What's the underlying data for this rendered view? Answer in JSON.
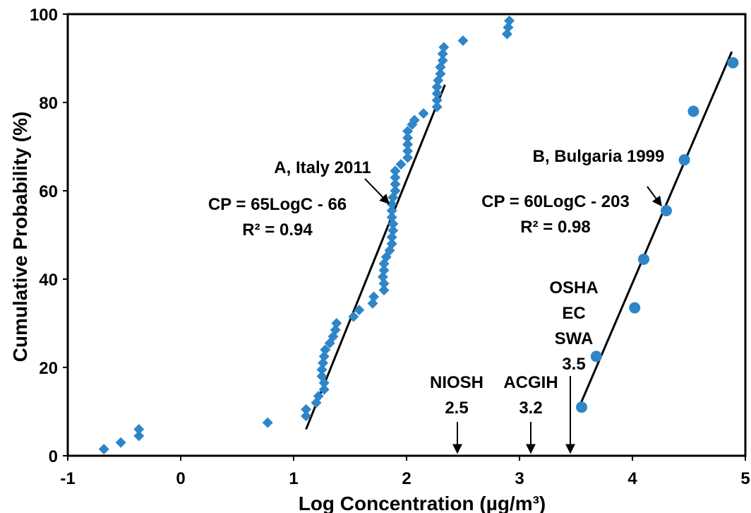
{
  "chart_data": {
    "type": "scatter",
    "title": "",
    "xlabel": "Log  Concentration (µg/m³)",
    "ylabel": "Cumulative Probability (%)",
    "xlim": [
      -1,
      5
    ],
    "ylim": [
      0,
      100
    ],
    "x_ticks": [
      "-1",
      "0",
      "1",
      "2",
      "3",
      "4",
      "5"
    ],
    "y_ticks": [
      "0",
      "20",
      "40",
      "60",
      "80",
      "100"
    ],
    "grid": false,
    "legend": "none",
    "series": [
      {
        "marker": "diamond",
        "color": "#2E86C8",
        "points": [
          [
            -0.68,
            1.5
          ],
          [
            -0.53,
            3.0
          ],
          [
            -0.37,
            4.5
          ],
          [
            -0.37,
            6.0
          ],
          [
            0.77,
            7.5
          ],
          [
            1.11,
            9.0
          ],
          [
            1.11,
            10.5
          ],
          [
            1.2,
            12.0
          ],
          [
            1.22,
            13.5
          ],
          [
            1.27,
            15.0
          ],
          [
            1.27,
            16.5
          ],
          [
            1.25,
            18.0
          ],
          [
            1.25,
            19.5
          ],
          [
            1.26,
            21.0
          ],
          [
            1.27,
            22.5
          ],
          [
            1.28,
            24.0
          ],
          [
            1.32,
            25.5
          ],
          [
            1.35,
            27.0
          ],
          [
            1.37,
            28.5
          ],
          [
            1.38,
            30.0
          ],
          [
            1.53,
            31.5
          ],
          [
            1.58,
            33.0
          ],
          [
            1.7,
            34.5
          ],
          [
            1.71,
            36.0
          ],
          [
            1.8,
            37.5
          ],
          [
            1.8,
            39.0
          ],
          [
            1.79,
            40.5
          ],
          [
            1.8,
            42.0
          ],
          [
            1.8,
            43.5
          ],
          [
            1.82,
            45.0
          ],
          [
            1.85,
            46.5
          ],
          [
            1.87,
            48.0
          ],
          [
            1.87,
            49.5
          ],
          [
            1.88,
            51.0
          ],
          [
            1.88,
            52.5
          ],
          [
            1.87,
            54.0
          ],
          [
            1.87,
            55.5
          ],
          [
            1.87,
            57.0
          ],
          [
            1.88,
            58.5
          ],
          [
            1.9,
            60.0
          ],
          [
            1.9,
            61.5
          ],
          [
            1.9,
            63.0
          ],
          [
            1.9,
            64.5
          ],
          [
            1.95,
            66.0
          ],
          [
            2.01,
            67.5
          ],
          [
            2.01,
            69.0
          ],
          [
            2.01,
            70.5
          ],
          [
            2.01,
            72.0
          ],
          [
            2.01,
            73.5
          ],
          [
            2.05,
            75.0
          ],
          [
            2.07,
            76.0
          ],
          [
            2.15,
            77.5
          ],
          [
            2.27,
            79.0
          ],
          [
            2.27,
            80.5
          ],
          [
            2.27,
            82.0
          ],
          [
            2.27,
            83.5
          ],
          [
            2.28,
            85.0
          ],
          [
            2.3,
            86.5
          ],
          [
            2.3,
            88.0
          ],
          [
            2.32,
            89.5
          ],
          [
            2.32,
            91.0
          ],
          [
            2.33,
            92.5
          ],
          [
            2.5,
            94.0
          ],
          [
            2.89,
            95.5
          ],
          [
            2.9,
            97.0
          ],
          [
            2.91,
            98.5
          ]
        ]
      },
      {
        "marker": "circle",
        "color": "#2E86C8",
        "points": [
          [
            3.55,
            11.0
          ],
          [
            3.68,
            22.5
          ],
          [
            4.02,
            33.5
          ],
          [
            4.1,
            44.5
          ],
          [
            4.3,
            55.5
          ],
          [
            4.46,
            67.0
          ],
          [
            4.54,
            78.0
          ],
          [
            4.89,
            89.0
          ]
        ]
      }
    ],
    "trendlines": [
      {
        "x": [
          1.11,
          2.34
        ],
        "y": [
          6,
          84
        ]
      },
      {
        "x": [
          3.52,
          4.88
        ],
        "y": [
          10.5,
          91.5
        ]
      }
    ],
    "annotations": [
      {
        "lines": [
          "A, Italy 2011"
        ]
      },
      {
        "lines": [
          "CP = 65LogC - 66",
          "R² = 0.94"
        ]
      },
      {
        "lines": [
          "B, Bulgaria 1999"
        ]
      },
      {
        "lines": [
          "CP = 60LogC - 203",
          "R² = 0.98"
        ]
      },
      {
        "lines": [
          "NIOSH",
          "2.5"
        ]
      },
      {
        "lines": [
          "ACGIH",
          "3.2"
        ]
      },
      {
        "lines": [
          "OSHA",
          "EC",
          "SWA",
          "3.5"
        ]
      }
    ],
    "limit_arrows": [
      {
        "x": 2.45,
        "label": "NIOSH 2.5"
      },
      {
        "x": 3.1,
        "label": "ACGIH 3.2"
      },
      {
        "x": 3.45,
        "label": "OSHA EC SWA 3.5"
      }
    ]
  }
}
